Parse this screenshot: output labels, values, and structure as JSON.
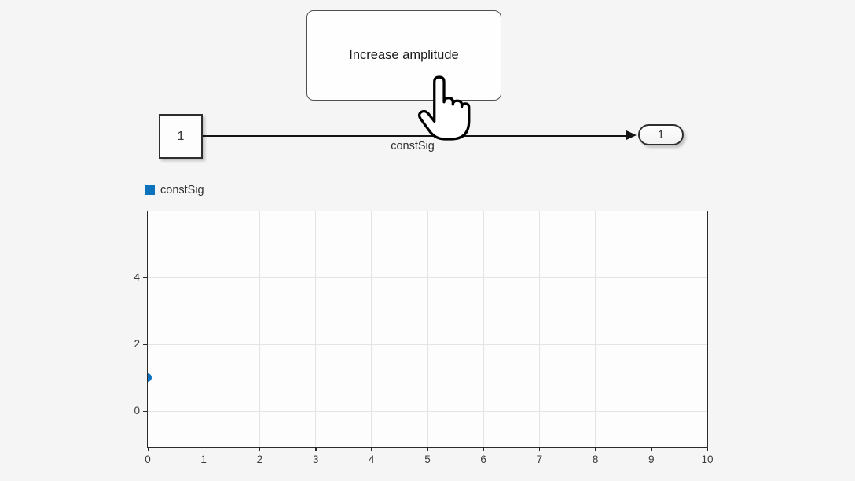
{
  "canvas": {
    "background": "#f5f5f6"
  },
  "button": {
    "label": "Increase amplitude"
  },
  "diagram": {
    "constant_block": {
      "value": "1"
    },
    "outport_block": {
      "value": "1"
    },
    "signal_label": "constSig"
  },
  "cursor": {
    "icon": "hand-pointer-icon"
  },
  "chart_data": {
    "type": "scatter",
    "title": "",
    "xlabel": "",
    "ylabel": "",
    "legend": [
      {
        "label": "constSig",
        "color": "#0d72bd"
      }
    ],
    "legend_position": "top-left",
    "grid": true,
    "x_axis": {
      "min": 0,
      "max": 10,
      "ticks": [
        0,
        1,
        2,
        3,
        4,
        5,
        6,
        7,
        8,
        9,
        10
      ]
    },
    "y_axis": {
      "min": -1.08,
      "max": 5.98,
      "ticks": [
        0,
        2,
        4
      ]
    },
    "series": [
      {
        "name": "constSig",
        "marker_color": "#0d72bd",
        "points": [
          {
            "x": 0,
            "y": 1
          }
        ]
      }
    ]
  }
}
